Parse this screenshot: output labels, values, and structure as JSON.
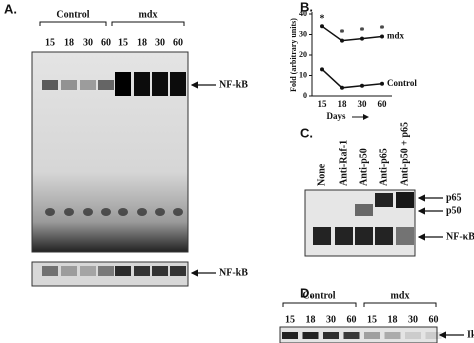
{
  "panels": {
    "a": {
      "label": "A.",
      "groups": [
        "Control",
        "mdx"
      ],
      "lanes": [
        "15",
        "18",
        "30",
        "60",
        "15",
        "18",
        "30",
        "60"
      ],
      "band_label": "NF-kB",
      "lower_band_label": "NF-kB"
    },
    "c": {
      "label": "C.",
      "lanes": [
        "None",
        "Anti-Raf-1",
        "Anti-p50",
        "Anti-p65",
        "Anti-p50 + p65"
      ],
      "band_labels": [
        "p65",
        "p50",
        "NF-κB"
      ]
    },
    "d": {
      "label": "D.",
      "groups": [
        "Control",
        "mdx"
      ],
      "lanes": [
        "15",
        "18",
        "30",
        "60",
        "15",
        "18",
        "30",
        "60"
      ],
      "band_label": "IkBα"
    }
  },
  "chart_data": {
    "type": "line",
    "panel_label": "B.",
    "x_label": "Days",
    "y_label": "Fold (arbitrary units)",
    "categories": [
      "15",
      "18",
      "30",
      "60"
    ],
    "series": [
      {
        "name": "mdx",
        "color": "#111111",
        "values": [
          34,
          27,
          28,
          29
        ]
      },
      {
        "name": "Control",
        "color": "#111111",
        "values": [
          13,
          4,
          5,
          6
        ]
      }
    ],
    "annotations": [
      "*",
      "*",
      "*",
      "*"
    ],
    "ylim": [
      0,
      40
    ],
    "yticks": [
      0,
      10,
      20,
      30,
      40
    ]
  }
}
